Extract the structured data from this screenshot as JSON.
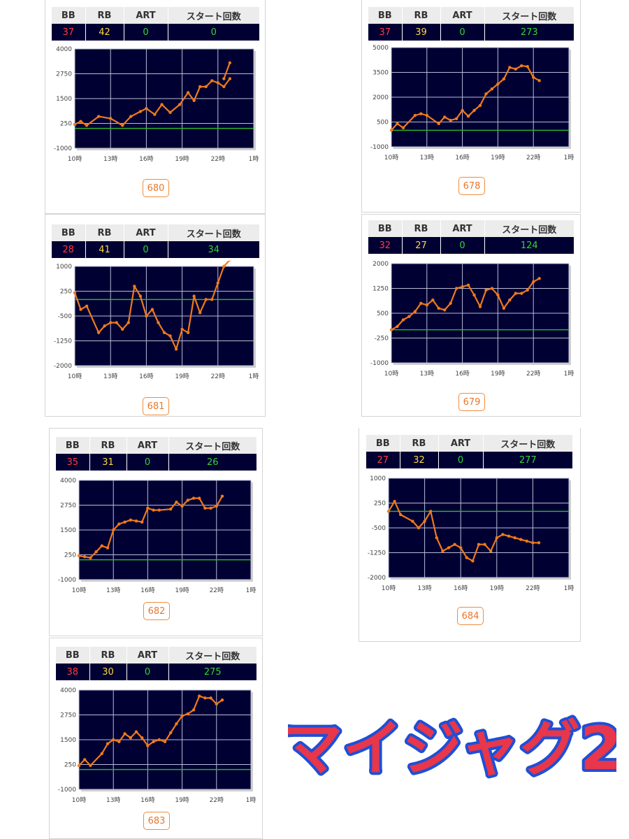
{
  "headers": {
    "bb": "BB",
    "rb": "RB",
    "art": "ART",
    "start": "スタート回数"
  },
  "logo_text": "マイジャグ2",
  "colors": {
    "plot_bg": "#000033",
    "line": "#f07a1a",
    "zero_line": "#2bb32b",
    "grid": "#b9bcd6",
    "bb": "#ff3b3b",
    "rb": "#ffd83b",
    "art": "#35d435",
    "badge": "#e9762b"
  },
  "machines": [
    {
      "id": "680",
      "bb": "37",
      "rb": "42",
      "art": "0",
      "start": "0"
    },
    {
      "id": "678",
      "bb": "37",
      "rb": "39",
      "art": "0",
      "start": "273"
    },
    {
      "id": "681",
      "bb": "28",
      "rb": "41",
      "art": "0",
      "start": "34"
    },
    {
      "id": "679",
      "bb": "32",
      "rb": "27",
      "art": "0",
      "start": "124"
    },
    {
      "id": "682",
      "bb": "35",
      "rb": "31",
      "art": "0",
      "start": "26"
    },
    {
      "id": "684",
      "bb": "27",
      "rb": "32",
      "art": "0",
      "start": "277"
    },
    {
      "id": "683",
      "bb": "38",
      "rb": "30",
      "art": "0",
      "start": "275"
    }
  ],
  "chart_data": [
    {
      "type": "line",
      "machine": "680",
      "x_ticks": [
        "10時",
        "13時",
        "16時",
        "19時",
        "22時",
        "1時"
      ],
      "y_ticks": [
        "-1000",
        "250",
        "1500",
        "2750",
        "4000"
      ],
      "ylim": [
        -1000,
        4000
      ],
      "xlim": [
        10,
        25
      ],
      "series": [
        {
          "x": [
            10,
            10.5,
            11,
            12,
            13,
            14,
            14.7,
            15.5,
            16,
            16.7,
            17.3,
            18,
            18.8,
            19.5,
            20,
            20.5,
            21,
            21.5,
            22,
            22.5,
            23
          ],
          "values": [
            200,
            350,
            150,
            600,
            500,
            150,
            600,
            850,
            1000,
            700,
            1200,
            800,
            1200,
            1800,
            1400,
            2100,
            2100,
            2400,
            2300,
            2100,
            2500
          ]
        },
        {
          "x": [
            22.5,
            23
          ],
          "values": [
            2500,
            3300
          ]
        }
      ]
    },
    {
      "type": "line",
      "machine": "678",
      "x_ticks": [
        "10時",
        "13時",
        "16時",
        "19時",
        "22時",
        "1時"
      ],
      "y_ticks": [
        "-1000",
        "500",
        "2000",
        "3500",
        "5000"
      ],
      "ylim": [
        -1000,
        5000
      ],
      "xlim": [
        10,
        25
      ],
      "series": [
        {
          "x": [
            10,
            10.5,
            11,
            12,
            12.5,
            13,
            14,
            14.5,
            15,
            15.5,
            16,
            16.5,
            17,
            17.5,
            18,
            18.5,
            19,
            19.5,
            20,
            20.5,
            21,
            21.5,
            22,
            22.5
          ],
          "values": [
            0,
            400,
            150,
            900,
            1000,
            900,
            400,
            800,
            600,
            700,
            1200,
            850,
            1200,
            1500,
            2200,
            2500,
            2800,
            3100,
            3800,
            3700,
            3900,
            3850,
            3200,
            3000
          ]
        }
      ]
    },
    {
      "type": "line",
      "machine": "681",
      "x_ticks": [
        "10時",
        "13時",
        "16時",
        "19時",
        "22時",
        "1時"
      ],
      "y_ticks": [
        "-2000",
        "-1250",
        "-500",
        "250",
        "1000"
      ],
      "ylim": [
        -2000,
        1000
      ],
      "xlim": [
        10,
        25
      ],
      "series": [
        {
          "x": [
            10,
            10.5,
            11,
            12,
            12.5,
            13,
            13.5,
            14,
            14.5,
            15,
            15.5,
            16,
            16.5,
            17,
            17.5,
            18,
            18.5,
            19,
            19.5,
            20,
            20.5,
            21,
            21.5,
            22,
            22.5,
            23
          ],
          "values": [
            200,
            -300,
            -200,
            -1000,
            -800,
            -700,
            -700,
            -900,
            -700,
            400,
            100,
            -500,
            -300,
            -700,
            -1000,
            -1100,
            -1500,
            -900,
            -1000,
            100,
            -400,
            0,
            0,
            500,
            1000,
            1200
          ]
        }
      ]
    },
    {
      "type": "line",
      "machine": "679",
      "x_ticks": [
        "10時",
        "13時",
        "16時",
        "19時",
        "22時",
        "1時"
      ],
      "y_ticks": [
        "-1000",
        "-250",
        "500",
        "1250",
        "2000"
      ],
      "ylim": [
        -1000,
        2000
      ],
      "xlim": [
        10,
        25
      ],
      "series": [
        {
          "x": [
            10,
            10.5,
            11,
            11.5,
            12,
            12.5,
            13,
            13.5,
            14,
            14.5,
            15,
            15.5,
            16,
            16.5,
            17,
            17.5,
            18,
            18.5,
            19,
            19.5,
            20,
            20.5,
            21,
            21.5,
            22,
            22.5
          ],
          "values": [
            0,
            100,
            300,
            400,
            550,
            800,
            750,
            900,
            650,
            600,
            800,
            1250,
            1300,
            1350,
            1050,
            700,
            1200,
            1250,
            1050,
            650,
            900,
            1100,
            1100,
            1200,
            1450,
            1550
          ]
        }
      ]
    },
    {
      "type": "line",
      "machine": "682",
      "x_ticks": [
        "10時",
        "13時",
        "16時",
        "19時",
        "22時",
        "1時"
      ],
      "y_ticks": [
        "-1000",
        "250",
        "1500",
        "2750",
        "4000"
      ],
      "ylim": [
        -1000,
        4000
      ],
      "xlim": [
        10,
        25
      ],
      "series": [
        {
          "x": [
            10,
            10.5,
            11,
            11.5,
            12,
            12.5,
            13,
            13.5,
            14,
            14.5,
            15,
            15.5,
            16,
            16.5,
            17,
            18,
            18.5,
            19,
            19.5,
            20,
            20.5,
            21,
            21.5,
            22,
            22.5
          ],
          "values": [
            200,
            150,
            100,
            400,
            700,
            600,
            1500,
            1800,
            1900,
            2000,
            1950,
            1900,
            2600,
            2500,
            2500,
            2550,
            2900,
            2700,
            3000,
            3100,
            3100,
            2600,
            2600,
            2700,
            3200
          ]
        }
      ]
    },
    {
      "type": "line",
      "machine": "684",
      "x_ticks": [
        "10時",
        "13時",
        "16時",
        "19時",
        "22時",
        "1時"
      ],
      "y_ticks": [
        "-2000",
        "-1250",
        "-500",
        "250",
        "1000"
      ],
      "ylim": [
        -2000,
        1000
      ],
      "xlim": [
        10,
        25
      ],
      "series": [
        {
          "x": [
            10,
            10.5,
            11,
            12,
            12.5,
            13,
            13.5,
            14,
            14.5,
            15,
            15.5,
            16,
            16.5,
            17,
            17.5,
            18,
            18.5,
            19,
            19.5,
            20,
            20.5,
            21,
            21.5,
            22,
            22.5
          ],
          "values": [
            0,
            300,
            -100,
            -300,
            -500,
            -300,
            0,
            -800,
            -1200,
            -1100,
            -1000,
            -1100,
            -1400,
            -1500,
            -1000,
            -1000,
            -1200,
            -800,
            -700,
            -750,
            -800,
            -850,
            -900,
            -950,
            -950
          ]
        }
      ]
    },
    {
      "type": "line",
      "machine": "683",
      "x_ticks": [
        "10時",
        "13時",
        "16時",
        "19時",
        "22時",
        "1時"
      ],
      "y_ticks": [
        "-1000",
        "250",
        "1500",
        "2750",
        "4000"
      ],
      "ylim": [
        -1000,
        4000
      ],
      "xlim": [
        10,
        25
      ],
      "series": [
        {
          "x": [
            10,
            10.5,
            11,
            12,
            12.5,
            13,
            13.5,
            14,
            14.5,
            15,
            15.5,
            16,
            16.5,
            17,
            17.5,
            18,
            18.5,
            19,
            19.5,
            20,
            20.5,
            21,
            21.5,
            22,
            22.5
          ],
          "values": [
            200,
            500,
            200,
            800,
            1300,
            1500,
            1400,
            1800,
            1600,
            1900,
            1600,
            1200,
            1400,
            1500,
            1400,
            1850,
            2300,
            2700,
            2800,
            3000,
            3700,
            3600,
            3600,
            3300,
            3500
          ]
        }
      ]
    }
  ]
}
